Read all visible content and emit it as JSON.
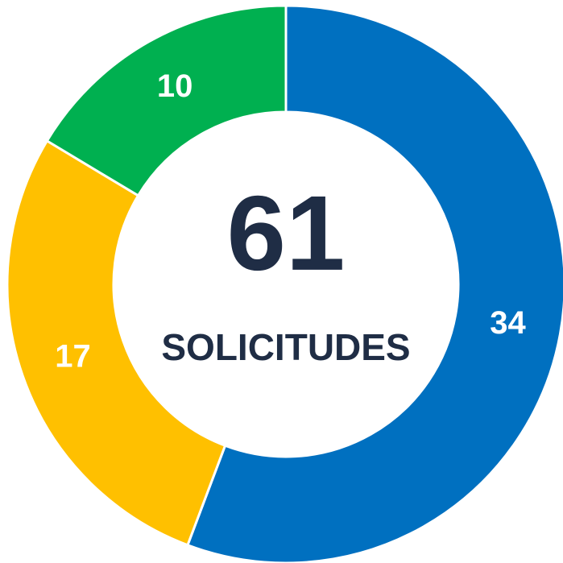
{
  "chart_data": {
    "type": "donut",
    "categories": [
      null,
      null,
      null
    ],
    "values": [
      34,
      17,
      10
    ],
    "colors": [
      "#0070C0",
      "#FFC000",
      "#00B050"
    ],
    "center_value": 61,
    "center_label": "SOLICITUDES"
  }
}
